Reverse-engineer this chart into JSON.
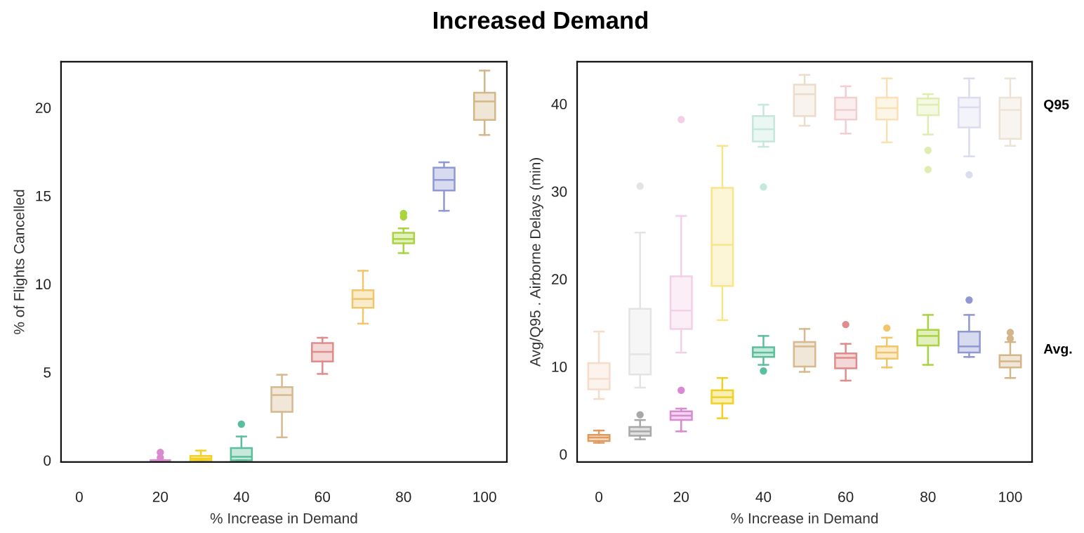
{
  "chart_data": [
    {
      "type": "box",
      "title": "Increased Demand",
      "xlabel": "% Increase in Demand",
      "ylabel": "% of Flights Cancelled",
      "xlim": [
        -4.5,
        105.5
      ],
      "xticks": [
        0,
        20,
        40,
        60,
        80,
        100
      ],
      "ylim": [
        -0.1,
        22.6
      ],
      "yticks": [
        0,
        5,
        10,
        15,
        20
      ],
      "grid": false,
      "legend": false,
      "series": [
        {
          "x": [
            20,
            30,
            40,
            50,
            60,
            70,
            80,
            90,
            100
          ],
          "colors": [
            "#d98ad0",
            "#f2d024",
            "#5cbf9c",
            "#d6b98f",
            "#e08c8c",
            "#f0c66a",
            "#a9d43f",
            "#9098d4",
            "#d3b689"
          ],
          "boxes": [
            {
              "low": 0,
              "q1": 0,
              "median": 0,
              "q3": 0,
              "high": 0,
              "outliers": [
                0.15,
                0.45
              ]
            },
            {
              "low": 0,
              "q1": 0,
              "median": 0.1,
              "q3": 0.25,
              "high": 0.55
            },
            {
              "low": 0,
              "q1": 0,
              "median": 0.2,
              "q3": 0.7,
              "high": 1.35,
              "outliers": [
                2.05
              ]
            },
            {
              "low": 1.3,
              "q1": 2.75,
              "median": 3.7,
              "q3": 4.15,
              "high": 4.85
            },
            {
              "low": 4.9,
              "q1": 5.6,
              "median": 6.15,
              "q3": 6.65,
              "high": 6.95
            },
            {
              "low": 7.75,
              "q1": 8.65,
              "median": 9.15,
              "q3": 9.65,
              "high": 10.75
            },
            {
              "low": 11.75,
              "q1": 12.3,
              "median": 12.55,
              "q3": 12.9,
              "high": 13.15,
              "outliers": [
                13.8,
                14.0
              ]
            },
            {
              "low": 14.15,
              "q1": 15.3,
              "median": 15.9,
              "q3": 16.6,
              "high": 16.9
            },
            {
              "low": 18.45,
              "q1": 19.3,
              "median": 20.35,
              "q3": 20.85,
              "high": 22.1
            }
          ]
        }
      ]
    },
    {
      "type": "box",
      "xlabel": "% Increase in Demand",
      "ylabel": "Avg/Q95 . Airborne Delays (min)",
      "xlim": [
        -5.3,
        105.3
      ],
      "xticks": [
        0,
        20,
        40,
        60,
        80,
        100
      ],
      "ylim": [
        -0.9,
        44.8
      ],
      "yticks": [
        0,
        10,
        20,
        30,
        40
      ],
      "grid": false,
      "legend": false,
      "series": [
        {
          "name": "Q95",
          "x": [
            0,
            10,
            20,
            30,
            40,
            50,
            60,
            70,
            80,
            90,
            100
          ],
          "colors": [
            "#f5dccb",
            "#e4e4e4",
            "#f3cfe8",
            "#f8e58a",
            "#c5e8dc",
            "#ecdccb",
            "#f3cdd0",
            "#f8e2b5",
            "#dfeeb0",
            "#dcdcf0",
            "#ece3d5"
          ],
          "boxes": [
            {
              "low": 6.3,
              "q1": 7.4,
              "median": 8.6,
              "q3": 10.4,
              "high": 14.0
            },
            {
              "low": 7.6,
              "q1": 9.1,
              "median": 11.4,
              "q3": 16.6,
              "high": 25.3,
              "outliers": [
                30.6
              ]
            },
            {
              "low": 11.6,
              "q1": 14.3,
              "median": 16.4,
              "q3": 20.3,
              "high": 27.2,
              "outliers": [
                38.2
              ]
            },
            {
              "low": 15.3,
              "q1": 19.2,
              "median": 23.9,
              "q3": 30.4,
              "high": 35.2
            },
            {
              "low": 35.1,
              "q1": 35.7,
              "median": 37.1,
              "q3": 38.6,
              "high": 39.9,
              "outliers": [
                30.5
              ]
            },
            {
              "low": 37.5,
              "q1": 38.6,
              "median": 41.1,
              "q3": 42.2,
              "high": 43.3
            },
            {
              "low": 36.6,
              "q1": 38.2,
              "median": 39.3,
              "q3": 40.7,
              "high": 42.0
            },
            {
              "low": 35.6,
              "q1": 38.2,
              "median": 39.5,
              "q3": 40.7,
              "high": 42.9
            },
            {
              "low": 36.5,
              "q1": 38.7,
              "median": 39.9,
              "q3": 40.6,
              "high": 41.1,
              "outliers": [
                34.7,
                32.5
              ]
            },
            {
              "low": 34.0,
              "q1": 37.3,
              "median": 39.6,
              "q3": 40.7,
              "high": 42.9,
              "outliers": [
                31.9
              ]
            },
            {
              "low": 35.2,
              "q1": 36.0,
              "median": 39.3,
              "q3": 40.7,
              "high": 42.9
            }
          ]
        },
        {
          "name": "Avg.",
          "x": [
            0,
            10,
            20,
            30,
            40,
            50,
            60,
            70,
            80,
            90,
            100
          ],
          "colors": [
            "#e09a5e",
            "#a8a8a8",
            "#d98ad0",
            "#f2d024",
            "#5cbf9c",
            "#d6b98f",
            "#e08c8c",
            "#f0c66a",
            "#a9d43f",
            "#9098d4",
            "#d3b689"
          ],
          "boxes": [
            {
              "low": 1.3,
              "q1": 1.5,
              "median": 1.9,
              "q3": 2.2,
              "high": 2.7
            },
            {
              "low": 1.7,
              "q1": 2.1,
              "median": 2.6,
              "q3": 3.1,
              "high": 3.9,
              "outliers": [
                4.5
              ]
            },
            {
              "low": 2.6,
              "q1": 3.9,
              "median": 4.4,
              "q3": 4.9,
              "high": 5.2,
              "outliers": [
                7.3
              ]
            },
            {
              "low": 4.1,
              "q1": 5.8,
              "median": 6.5,
              "q3": 7.3,
              "high": 8.7
            },
            {
              "low": 10.2,
              "q1": 11.1,
              "median": 11.6,
              "q3": 12.2,
              "high": 13.5,
              "outliers": [
                9.5
              ]
            },
            {
              "low": 9.4,
              "q1": 10.0,
              "median": 12.3,
              "q3": 12.8,
              "high": 14.3
            },
            {
              "low": 8.4,
              "q1": 9.8,
              "median": 11.0,
              "q3": 11.5,
              "high": 12.6,
              "outliers": [
                14.8
              ]
            },
            {
              "low": 9.9,
              "q1": 10.9,
              "median": 11.6,
              "q3": 12.3,
              "high": 13.3,
              "outliers": [
                14.4
              ]
            },
            {
              "low": 10.2,
              "q1": 12.4,
              "median": 13.5,
              "q3": 14.2,
              "high": 15.9
            },
            {
              "low": 11.1,
              "q1": 11.6,
              "median": 12.3,
              "q3": 14.0,
              "high": 15.9,
              "outliers": [
                17.6
              ]
            },
            {
              "low": 8.7,
              "q1": 9.9,
              "median": 10.6,
              "q3": 11.3,
              "high": 12.8,
              "outliers": [
                13.2,
                13.9
              ]
            }
          ]
        }
      ]
    }
  ]
}
